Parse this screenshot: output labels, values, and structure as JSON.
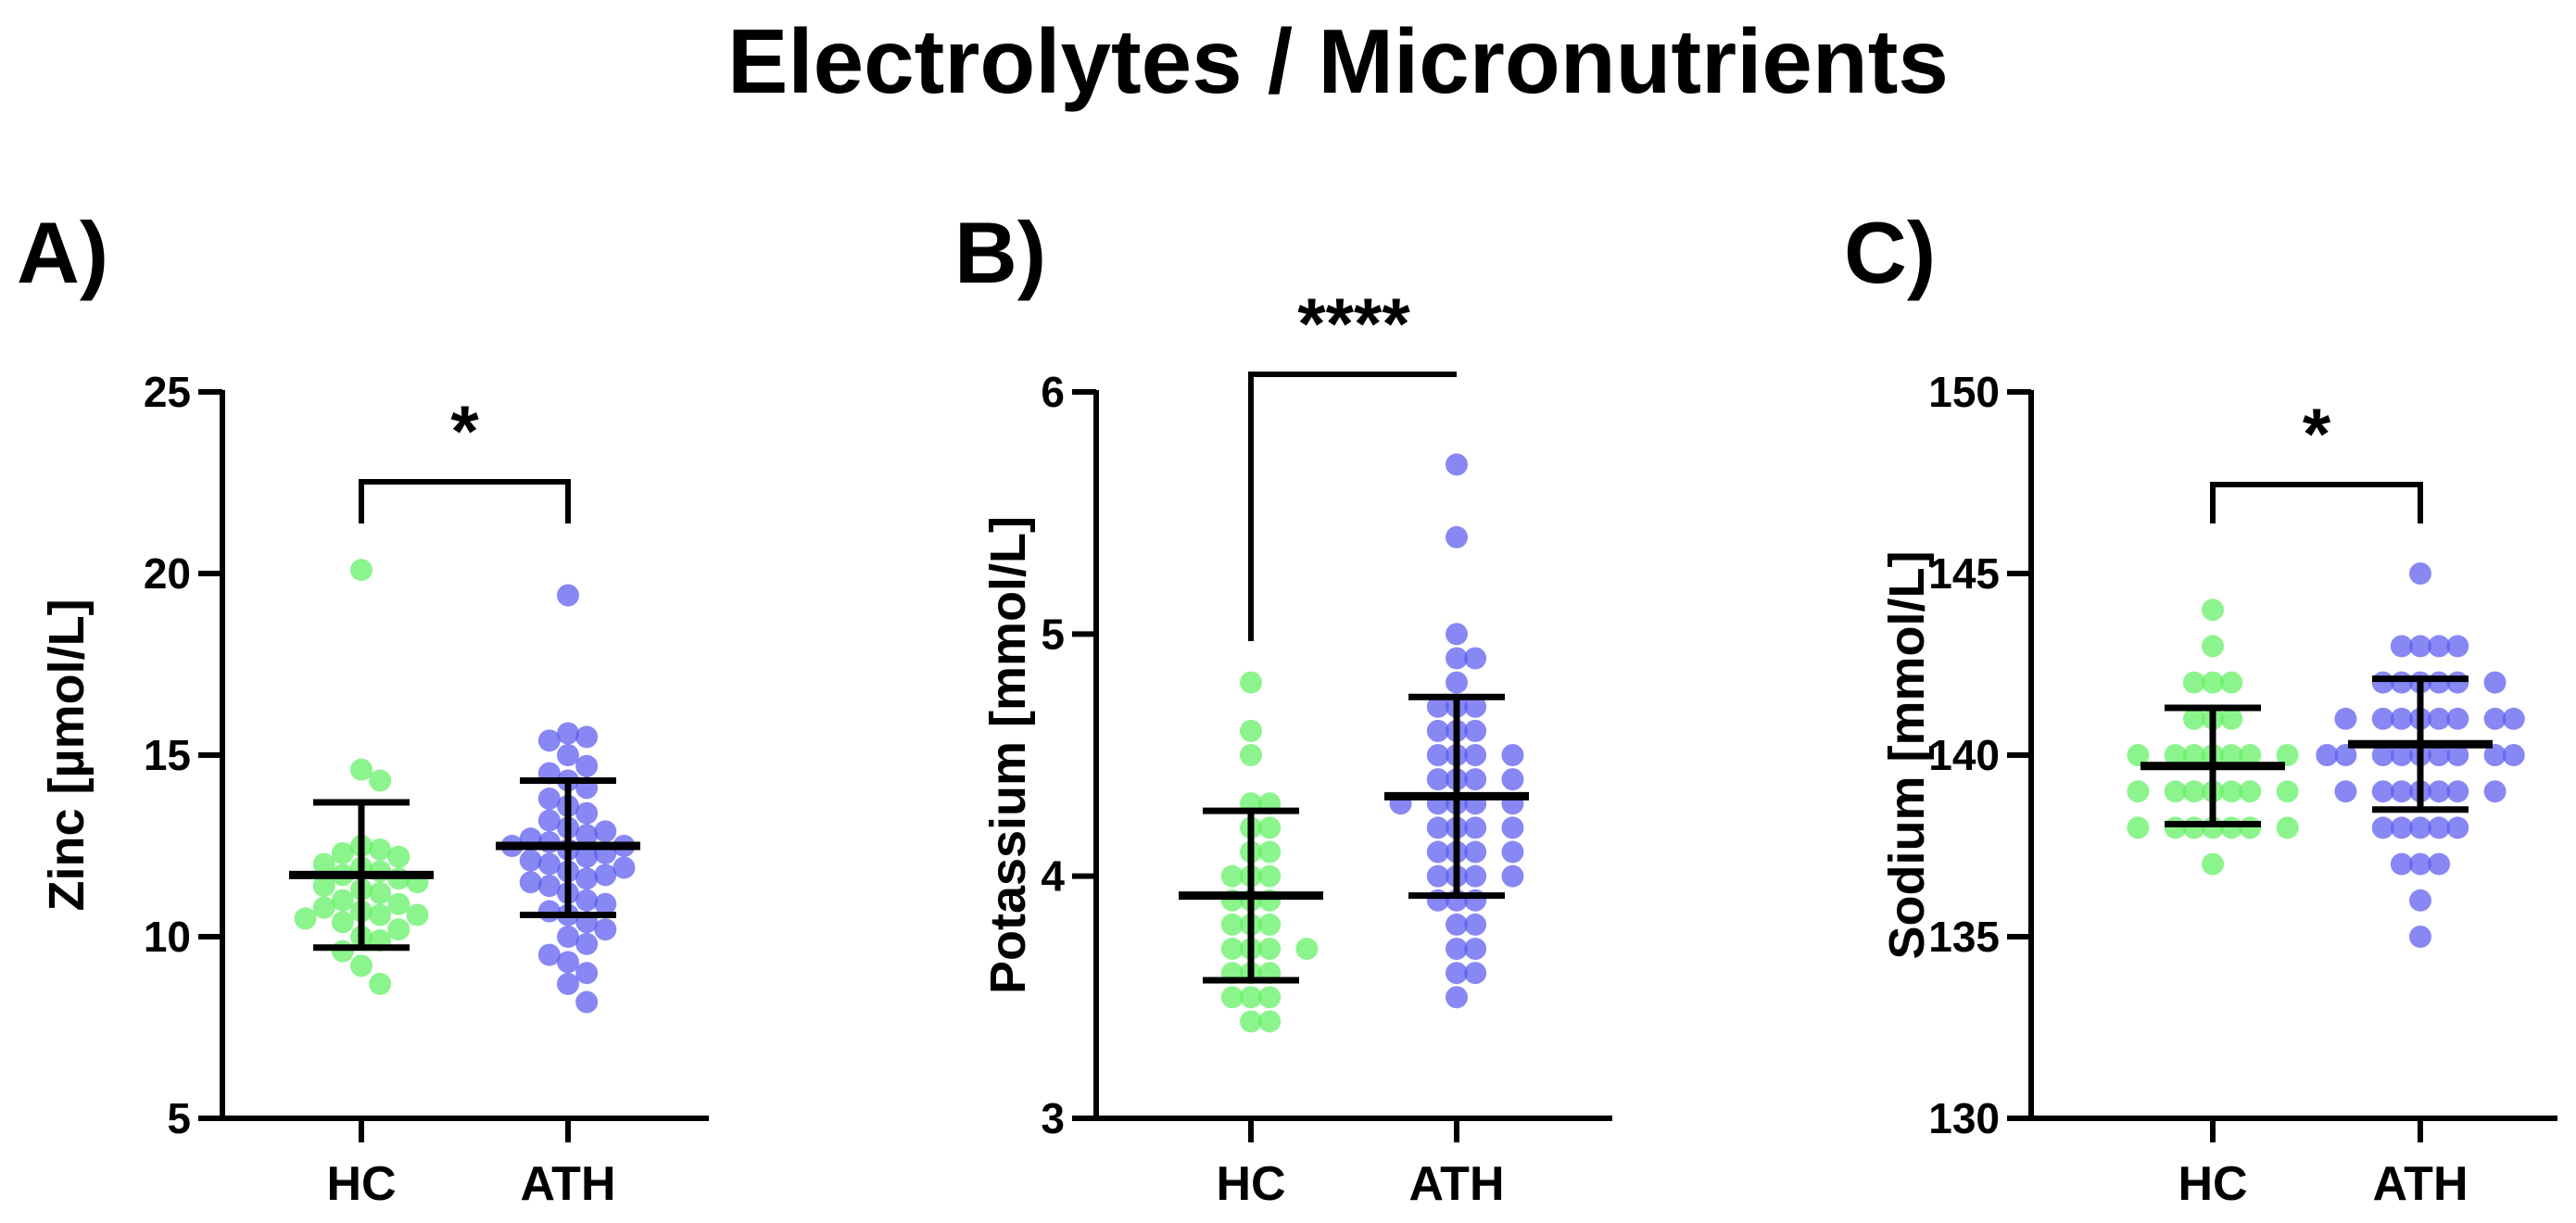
{
  "chart_data": [
    {
      "type": "scatter",
      "panel": "A)",
      "title": "Electrolytes / Micronutrients",
      "ylabel": "Zinc [µmol/L]",
      "xlabel": "",
      "ylim": [
        5,
        25
      ],
      "yticks": [
        5,
        10,
        15,
        20,
        25
      ],
      "categories": [
        "HC",
        "ATH"
      ],
      "significance": "*",
      "series": [
        {
          "name": "HC",
          "color": "#5ff05f",
          "mean": 11.7,
          "sd_low": 9.7,
          "sd_high": 13.7,
          "values": [
            20.1,
            14.6,
            14.3,
            12.5,
            12.4,
            12.3,
            12.2,
            12.0,
            11.9,
            11.8,
            11.7,
            11.6,
            11.5,
            11.4,
            11.3,
            11.2,
            11.0,
            10.9,
            10.8,
            10.7,
            10.6,
            10.6,
            10.5,
            10.4,
            10.2,
            10.0,
            9.9,
            9.6,
            9.2,
            8.7
          ]
        },
        {
          "name": "ATH",
          "color": "#5a5af0",
          "mean": 12.5,
          "sd_low": 10.6,
          "sd_high": 14.3,
          "values": [
            19.4,
            15.6,
            15.5,
            15.4,
            15.0,
            14.7,
            14.5,
            14.3,
            14.1,
            13.8,
            13.6,
            13.4,
            13.2,
            13.0,
            12.9,
            12.8,
            12.7,
            12.6,
            12.5,
            12.5,
            12.4,
            12.3,
            12.2,
            12.1,
            12.0,
            11.9,
            11.8,
            11.7,
            11.6,
            11.5,
            11.4,
            11.2,
            11.0,
            10.9,
            10.7,
            10.6,
            10.4,
            10.2,
            10.0,
            9.8,
            9.5,
            9.3,
            9.0,
            8.7,
            8.2
          ]
        }
      ]
    },
    {
      "type": "scatter",
      "panel": "B)",
      "ylabel": "Potassium [mmol/L]",
      "xlabel": "",
      "ylim": [
        3,
        6
      ],
      "yticks": [
        3,
        4,
        5,
        6
      ],
      "categories": [
        "HC",
        "ATH"
      ],
      "significance": "****",
      "series": [
        {
          "name": "HC",
          "color": "#5ff05f",
          "mean": 3.92,
          "sd_low": 3.57,
          "sd_high": 4.27,
          "values": [
            4.8,
            4.6,
            4.5,
            4.3,
            4.3,
            4.2,
            4.1,
            4.1,
            4.0,
            4.0,
            4.0,
            3.9,
            3.9,
            3.9,
            3.8,
            3.8,
            3.8,
            3.7,
            3.7,
            3.7,
            3.7,
            3.6,
            3.6,
            3.6,
            3.5,
            3.5,
            3.5,
            3.4,
            3.4,
            4.2
          ]
        },
        {
          "name": "ATH",
          "color": "#5a5af0",
          "mean": 4.33,
          "sd_low": 3.92,
          "sd_high": 4.74,
          "values": [
            5.7,
            5.4,
            5.0,
            4.9,
            4.9,
            4.8,
            4.7,
            4.7,
            4.7,
            4.6,
            4.6,
            4.6,
            4.5,
            4.5,
            4.5,
            4.5,
            4.4,
            4.4,
            4.4,
            4.4,
            4.3,
            4.3,
            4.3,
            4.3,
            4.3,
            4.2,
            4.2,
            4.2,
            4.2,
            4.1,
            4.1,
            4.1,
            4.1,
            4.0,
            4.0,
            4.0,
            4.0,
            3.9,
            3.9,
            3.9,
            3.8,
            3.8,
            3.7,
            3.7,
            3.6,
            3.6,
            3.5
          ]
        }
      ]
    },
    {
      "type": "scatter",
      "panel": "C)",
      "ylabel": "Sodium [mmol/L]",
      "xlabel": "",
      "ylim": [
        130,
        150
      ],
      "yticks": [
        130,
        135,
        140,
        145,
        150
      ],
      "categories": [
        "HC",
        "ATH"
      ],
      "significance": "*",
      "series": [
        {
          "name": "HC",
          "color": "#5ff05f",
          "mean": 139.7,
          "sd_low": 138.1,
          "sd_high": 141.3,
          "values": [
            144,
            143,
            142,
            142,
            142,
            141,
            141,
            141,
            140,
            140,
            140,
            140,
            140,
            140,
            140,
            139,
            139,
            139,
            139,
            139,
            139,
            139,
            138,
            138,
            138,
            138,
            138,
            138,
            138,
            137
          ]
        },
        {
          "name": "ATH",
          "color": "#5a5af0",
          "mean": 140.3,
          "sd_low": 138.5,
          "sd_high": 142.1,
          "values": [
            145,
            143,
            143,
            143,
            143,
            142,
            142,
            142,
            142,
            142,
            142,
            141,
            141,
            141,
            141,
            141,
            141,
            141,
            141,
            140,
            140,
            140,
            140,
            140,
            140,
            140,
            140,
            140,
            139,
            139,
            139,
            139,
            139,
            139,
            139,
            138,
            138,
            138,
            138,
            138,
            137,
            137,
            137,
            136,
            135
          ]
        }
      ]
    }
  ]
}
